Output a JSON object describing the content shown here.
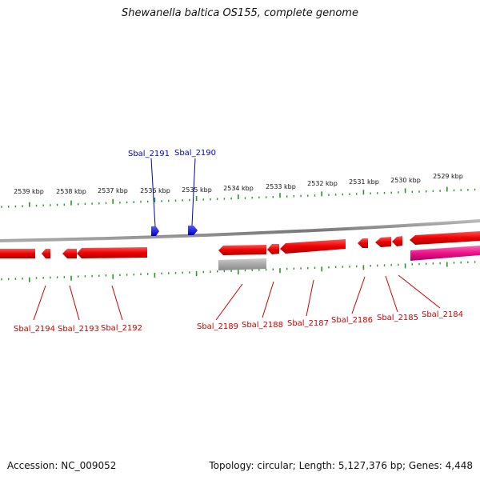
{
  "title": "Shewanella baltica OS155, complete genome",
  "footer": {
    "accession": "Accession: NC_009052",
    "summary": "Topology: circular; Length: 5,127,376 bp; Genes: 4,448"
  },
  "colors": {
    "forward_gene": "#0000ee",
    "reverse_gene": "#ee0000",
    "highlight_gene": "#ee1188",
    "pseudo_feature": "#a8a8a8",
    "tick": "#229922",
    "backbone": "#888888"
  },
  "scale_ticks": [
    "2539 kbp",
    "2538 kbp",
    "2537 kbp",
    "2536 kbp",
    "2535 kbp",
    "2534 kbp",
    "2533 kbp",
    "2532 kbp",
    "2531 kbp",
    "2530 kbp",
    "2529 kbp"
  ],
  "forward_genes": [
    "Sbal_2191",
    "Sbal_2190"
  ],
  "reverse_genes": [
    "Sbal_2194",
    "Sbal_2193",
    "Sbal_2192",
    "Sbal_2189",
    "Sbal_2188",
    "Sbal_2187",
    "Sbal_2186",
    "Sbal_2185",
    "Sbal_2184"
  ]
}
